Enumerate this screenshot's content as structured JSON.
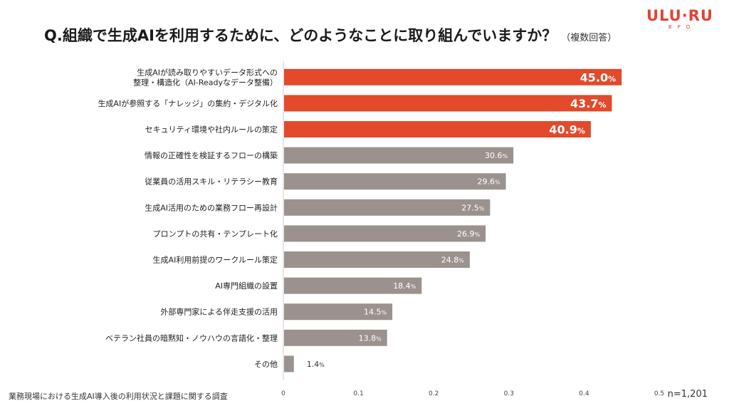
{
  "header": {
    "title": "Q.組織で生成AIを利用するために、どのようなことに取り組んでいますか？",
    "note": "（複数回答）",
    "logo_main": "ULU·RU",
    "logo_sub": "BPO"
  },
  "footer": {
    "source": "業務現場における生成AI導入後の利用状況と課題に関する調査",
    "sample": "n=1,201"
  },
  "colors": {
    "highlight": "#e24a2b",
    "normal": "#9b928e",
    "axis": "#cccccc"
  },
  "chart_data": {
    "type": "bar",
    "orientation": "horizontal",
    "categories": [
      [
        "生成AIが読み取りやすいデータ形式への",
        "整理・構造化（AI-Readyなデータ整備）"
      ],
      [
        "生成AIが参照する「ナレッジ」の集約・デジタル化"
      ],
      [
        "セキュリティ環境や社内ルールの策定"
      ],
      [
        "情報の正確性を検証するフローの構築"
      ],
      [
        "従業員の活用スキル・リテラシー教育"
      ],
      [
        "生成AI活用のための業務フロー再設計"
      ],
      [
        "プロンプトの共有・テンプレート化"
      ],
      [
        "生成AI利用前提のワークルール策定"
      ],
      [
        "AI専門組織の設置"
      ],
      [
        "外部専門家による伴走支援の活用"
      ],
      [
        "ベテラン社員の暗黙知・ノウハウの言語化・整理"
      ],
      [
        "その他"
      ]
    ],
    "values": [
      0.45,
      0.437,
      0.409,
      0.306,
      0.296,
      0.275,
      0.269,
      0.248,
      0.184,
      0.145,
      0.138,
      0.014
    ],
    "value_labels": [
      "45.0",
      "43.7",
      "40.9",
      "30.6",
      "29.6",
      "27.5",
      "26.9",
      "24.8",
      "18.4",
      "14.5",
      "13.8",
      "1.4"
    ],
    "value_unit": "%",
    "highlighted": [
      true,
      true,
      true,
      false,
      false,
      false,
      false,
      false,
      false,
      false,
      false,
      false
    ],
    "xlim": [
      0,
      0.5
    ],
    "xticks": [
      "0",
      "0.1",
      "0.2",
      "0.3",
      "0.4",
      "0.5"
    ],
    "grid": false
  }
}
